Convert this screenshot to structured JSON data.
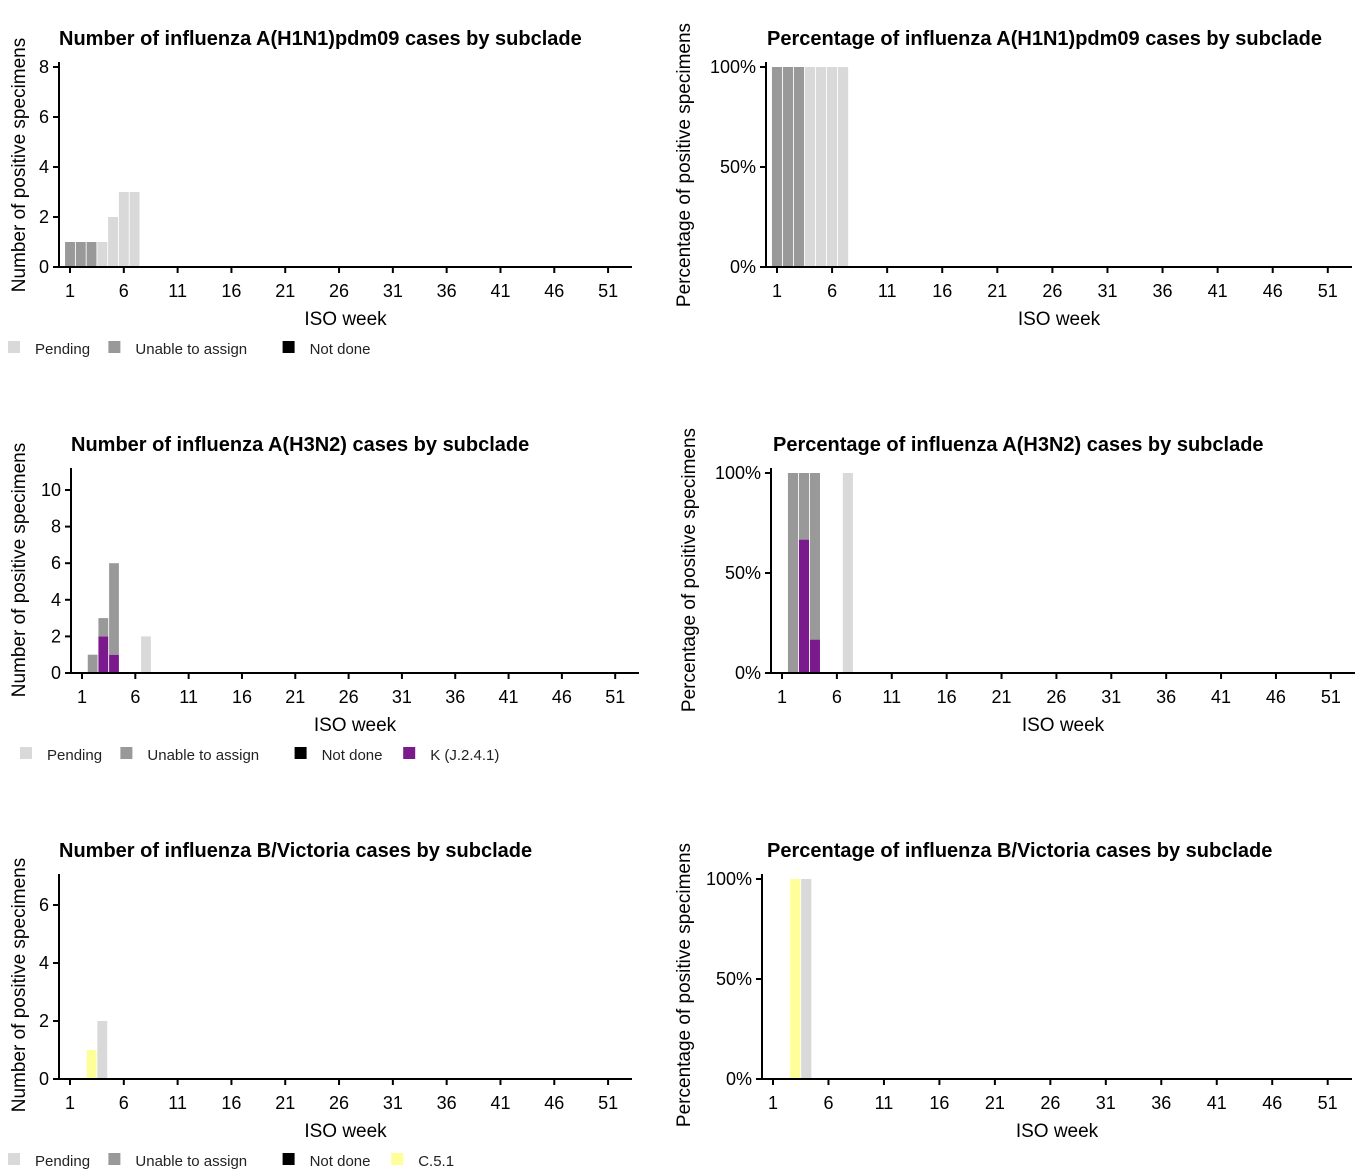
{
  "legend_colors": {
    "Pending": "#d9d9d9",
    "Unable to assign": "#999999",
    "Not done": "#000000",
    "K (J.2.4.1)": "#7a1a8c",
    "C.5.1": "#ffff99"
  },
  "chart_data": [
    {
      "type": "bar",
      "stacked": true,
      "title": "Number of influenza A(H1N1)pdm09 cases by subclade",
      "xlabel": "ISO week",
      "ylabel": "Number of positive specimens",
      "xticks": [
        "1",
        "6",
        "11",
        "16",
        "21",
        "26",
        "31",
        "36",
        "41",
        "46",
        "51"
      ],
      "yticks": [
        "0",
        "2",
        "4",
        "6",
        "8"
      ],
      "ylim": [
        0,
        8
      ],
      "x": [
        1,
        2,
        3,
        4,
        5,
        6,
        7
      ],
      "series": [
        {
          "name": "Unable to assign",
          "values": [
            1,
            1,
            1,
            0,
            0,
            0,
            0
          ]
        },
        {
          "name": "Pending",
          "values": [
            0,
            0,
            0,
            1,
            2,
            3,
            3
          ]
        }
      ],
      "legend": [
        "Pending",
        "Unable to assign",
        "Not done"
      ],
      "grid": false,
      "legend_position": "bottom-left"
    },
    {
      "type": "bar",
      "stacked": true,
      "title": "Percentage of influenza A(H1N1)pdm09 cases by subclade",
      "xlabel": "ISO week",
      "ylabel": "Percentage of positive specimens",
      "xticks": [
        "1",
        "6",
        "11",
        "16",
        "21",
        "26",
        "31",
        "36",
        "41",
        "46",
        "51"
      ],
      "yticks": [
        "0%",
        "50%",
        "100%"
      ],
      "ylim": [
        0,
        100
      ],
      "x": [
        1,
        2,
        3,
        4,
        5,
        6,
        7
      ],
      "series": [
        {
          "name": "Unable to assign",
          "values": [
            100,
            100,
            100,
            0,
            0,
            0,
            0
          ]
        },
        {
          "name": "Pending",
          "values": [
            0,
            0,
            0,
            100,
            100,
            100,
            100
          ]
        }
      ],
      "grid": false
    },
    {
      "type": "bar",
      "stacked": true,
      "title": "Number of influenza A(H3N2) cases by subclade",
      "xlabel": "ISO week",
      "ylabel": "Number of positive specimens",
      "xticks": [
        "1",
        "6",
        "11",
        "16",
        "21",
        "26",
        "31",
        "36",
        "41",
        "46",
        "51"
      ],
      "yticks": [
        "0",
        "2",
        "4",
        "6",
        "8",
        "10"
      ],
      "ylim": [
        0,
        11
      ],
      "x": [
        2,
        3,
        4,
        7
      ],
      "series": [
        {
          "name": "K (J.2.4.1)",
          "values": [
            0,
            2,
            1,
            0
          ]
        },
        {
          "name": "Unable to assign",
          "values": [
            1,
            1,
            5,
            0
          ]
        },
        {
          "name": "Pending",
          "values": [
            0,
            0,
            0,
            2
          ]
        }
      ],
      "legend": [
        "Pending",
        "Unable to assign",
        "Not done",
        "K (J.2.4.1)"
      ],
      "grid": false,
      "legend_position": "bottom-left"
    },
    {
      "type": "bar",
      "stacked": true,
      "title": "Percentage of influenza A(H3N2) cases by subclade",
      "xlabel": "ISO week",
      "ylabel": "Percentage of positive specimens",
      "xticks": [
        "1",
        "6",
        "11",
        "16",
        "21",
        "26",
        "31",
        "36",
        "41",
        "46",
        "51"
      ],
      "yticks": [
        "0%",
        "50%",
        "100%"
      ],
      "ylim": [
        0,
        100
      ],
      "x": [
        2,
        3,
        4,
        7
      ],
      "series": [
        {
          "name": "K (J.2.4.1)",
          "values": [
            0,
            66.7,
            16.7,
            0
          ]
        },
        {
          "name": "Unable to assign",
          "values": [
            100,
            33.3,
            83.3,
            0
          ]
        },
        {
          "name": "Pending",
          "values": [
            0,
            0,
            0,
            100
          ]
        }
      ],
      "grid": false
    },
    {
      "type": "bar",
      "stacked": true,
      "title": "Number of influenza B/Victoria cases by subclade",
      "xlabel": "ISO week",
      "ylabel": "Number of positive specimens",
      "xticks": [
        "1",
        "6",
        "11",
        "16",
        "21",
        "26",
        "31",
        "36",
        "41",
        "46",
        "51"
      ],
      "yticks": [
        "0",
        "2",
        "4",
        "6"
      ],
      "ylim": [
        0,
        7
      ],
      "x": [
        3,
        4
      ],
      "series": [
        {
          "name": "C.5.1",
          "values": [
            1,
            0
          ]
        },
        {
          "name": "Pending",
          "values": [
            0,
            2
          ]
        }
      ],
      "legend": [
        "Pending",
        "Unable to assign",
        "Not done",
        "C.5.1"
      ],
      "grid": false,
      "legend_position": "bottom-left"
    },
    {
      "type": "bar",
      "stacked": true,
      "title": "Percentage of influenza B/Victoria cases by subclade",
      "xlabel": "ISO week",
      "ylabel": "Percentage of positive specimens",
      "xticks": [
        "1",
        "6",
        "11",
        "16",
        "21",
        "26",
        "31",
        "36",
        "41",
        "46",
        "51"
      ],
      "yticks": [
        "0%",
        "50%",
        "100%"
      ],
      "ylim": [
        0,
        100
      ],
      "x": [
        3,
        4
      ],
      "series": [
        {
          "name": "C.5.1",
          "values": [
            100,
            0
          ]
        },
        {
          "name": "Pending",
          "values": [
            0,
            100
          ]
        }
      ],
      "grid": false
    }
  ]
}
